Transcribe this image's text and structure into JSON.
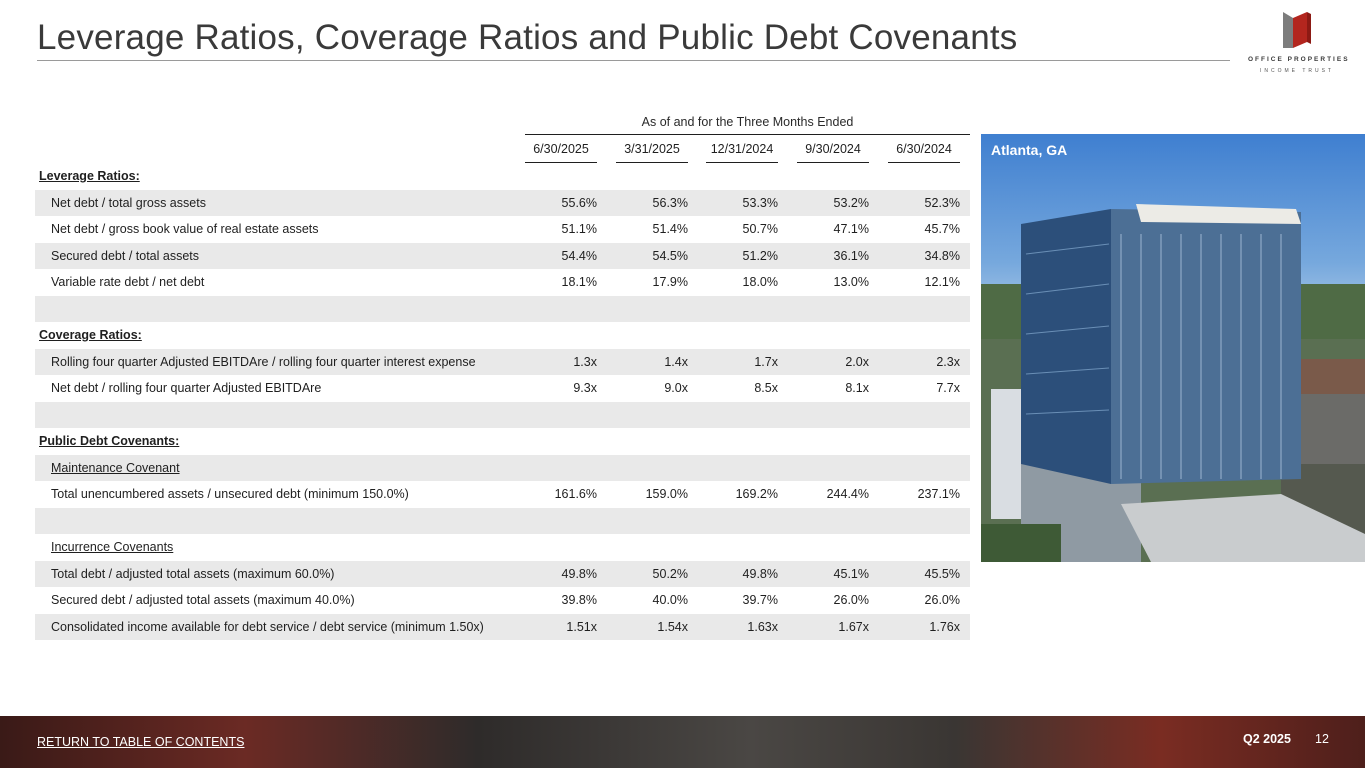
{
  "page": {
    "title": "Leverage Ratios, Coverage Ratios and Public Debt Covenants",
    "quarter": "Q2 2025",
    "page_number": "12",
    "return_link": "RETURN TO TABLE OF CONTENTS"
  },
  "logo": {
    "line1": "OFFICE PROPERTIES",
    "line2": "INCOME TRUST"
  },
  "photo": {
    "caption": "Atlanta, GA"
  },
  "table": {
    "group_header": "As of and for the Three Months Ended",
    "columns": [
      "6/30/2025",
      "3/31/2025",
      "12/31/2024",
      "9/30/2024",
      "6/30/2024"
    ],
    "rows": [
      {
        "type": "section",
        "label": "Leverage Ratios:",
        "values": []
      },
      {
        "type": "data",
        "label": "Net debt / total gross assets",
        "values": [
          "55.6%",
          "56.3%",
          "53.3%",
          "53.2%",
          "52.3%"
        ]
      },
      {
        "type": "data",
        "label": "Net debt / gross book value of real estate assets",
        "values": [
          "51.1%",
          "51.4%",
          "50.7%",
          "47.1%",
          "45.7%"
        ]
      },
      {
        "type": "data",
        "label": "Secured debt / total assets",
        "values": [
          "54.4%",
          "54.5%",
          "51.2%",
          "36.1%",
          "34.8%"
        ]
      },
      {
        "type": "data",
        "label": "Variable rate debt / net debt",
        "values": [
          "18.1%",
          "17.9%",
          "18.0%",
          "13.0%",
          "12.1%"
        ]
      },
      {
        "type": "blank",
        "label": "",
        "values": []
      },
      {
        "type": "section",
        "label": "Coverage Ratios:",
        "values": []
      },
      {
        "type": "data",
        "label": "Rolling four quarter Adjusted EBITDAre / rolling four quarter interest expense",
        "values": [
          "1.3x",
          "1.4x",
          "1.7x",
          "2.0x",
          "2.3x"
        ]
      },
      {
        "type": "data",
        "label": "Net debt / rolling four quarter Adjusted EBITDAre",
        "values": [
          "9.3x",
          "9.0x",
          "8.5x",
          "8.1x",
          "7.7x"
        ]
      },
      {
        "type": "blank",
        "label": "",
        "values": []
      },
      {
        "type": "section",
        "label": "Public Debt Covenants:",
        "values": []
      },
      {
        "type": "subsection",
        "label": "Maintenance Covenant",
        "values": []
      },
      {
        "type": "data",
        "label": "Total unencumbered assets / unsecured debt (minimum 150.0%)",
        "values": [
          "161.6%",
          "159.0%",
          "169.2%",
          "244.4%",
          "237.1%"
        ]
      },
      {
        "type": "blank",
        "label": "",
        "values": []
      },
      {
        "type": "subsection",
        "label": "Incurrence Covenants",
        "values": []
      },
      {
        "type": "data",
        "label": "Total debt / adjusted total assets (maximum 60.0%)",
        "values": [
          "49.8%",
          "50.2%",
          "49.8%",
          "45.1%",
          "45.5%"
        ]
      },
      {
        "type": "data",
        "label": "Secured debt / adjusted total assets (maximum 40.0%)",
        "values": [
          "39.8%",
          "40.0%",
          "39.7%",
          "26.0%",
          "26.0%"
        ]
      },
      {
        "type": "data",
        "label": "Consolidated income available for debt service / debt service (minimum 1.50x)",
        "values": [
          "1.51x",
          "1.54x",
          "1.63x",
          "1.67x",
          "1.76x"
        ]
      }
    ]
  },
  "colors": {
    "brand_red": "#b3261e",
    "row_shade": "#e9e9e9",
    "text": "#1f1f1f"
  }
}
